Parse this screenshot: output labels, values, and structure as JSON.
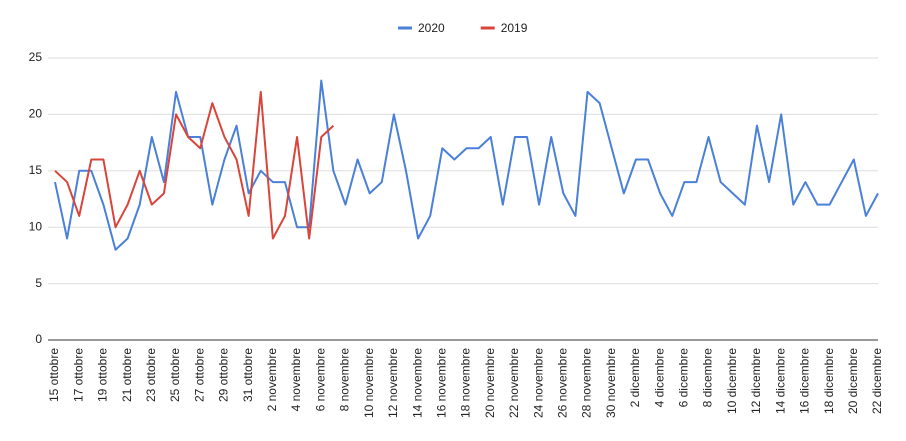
{
  "chart_data": {
    "type": "line",
    "categories": [
      "15 ottobre",
      null,
      "17 ottobre",
      null,
      "19 ottobre",
      null,
      "21 ottobre",
      null,
      "23 ottobre",
      null,
      "25 ottobre",
      null,
      "27 ottobre",
      null,
      "29 ottobre",
      null,
      "31 ottobre",
      null,
      "2 novembre",
      null,
      "4 novembre",
      null,
      "6 novembre",
      null,
      "8 novembre",
      null,
      "10 novembre",
      null,
      "12 novembre",
      null,
      "14 novembre",
      null,
      "16 novembre",
      null,
      "18 novembre",
      null,
      "20 novembre",
      null,
      "22 novembre",
      null,
      "24 novembre",
      null,
      "26 novembre",
      null,
      "28 novembre",
      null,
      "30 novembre",
      null,
      "2 dicembre",
      null,
      "4 dicembre",
      null,
      "6 dicembre",
      null,
      "8 dicembre",
      null,
      "10 dicembre",
      null,
      "12 dicembre",
      null,
      "14 dicembre",
      null,
      "16 dicembre",
      null,
      "18 dicembre",
      null,
      "20 dicembre",
      null,
      "22 dicembre"
    ],
    "series": [
      {
        "name": "2020",
        "color": "#4a80d9",
        "values": [
          14,
          9,
          15,
          15,
          12,
          8,
          9,
          12,
          18,
          14,
          22,
          18,
          18,
          12,
          16,
          19,
          13,
          15,
          14,
          14,
          10,
          10,
          23,
          15,
          12,
          16,
          13,
          14,
          20,
          15,
          9,
          11,
          17,
          16,
          17,
          17,
          18,
          12,
          18,
          18,
          12,
          18,
          13,
          11,
          22,
          21,
          17,
          13,
          16,
          16,
          13,
          11,
          14,
          14,
          18,
          14,
          13,
          12,
          19,
          14,
          20,
          12,
          14,
          12,
          12,
          14,
          16,
          11,
          13
        ]
      },
      {
        "name": "2019",
        "color": "#d9453a",
        "values": [
          15,
          14,
          11,
          16,
          16,
          10,
          12,
          15,
          12,
          13,
          20,
          18,
          17,
          21,
          18,
          16,
          11,
          22,
          9,
          11,
          18,
          9,
          18,
          19,
          null,
          null,
          null,
          null,
          null,
          null,
          null,
          null,
          null,
          null,
          null,
          null,
          null,
          null,
          null,
          null,
          null,
          null,
          null,
          null,
          null,
          null,
          null,
          null,
          null,
          null,
          null,
          null,
          null,
          null,
          null,
          null,
          null,
          null,
          null,
          null,
          null,
          null,
          null,
          null,
          null,
          null,
          null,
          null,
          null
        ]
      }
    ],
    "ylim": [
      0,
      25
    ],
    "yticks": [
      0,
      5,
      10,
      15,
      20,
      25
    ],
    "grid": true,
    "legend": "top"
  }
}
